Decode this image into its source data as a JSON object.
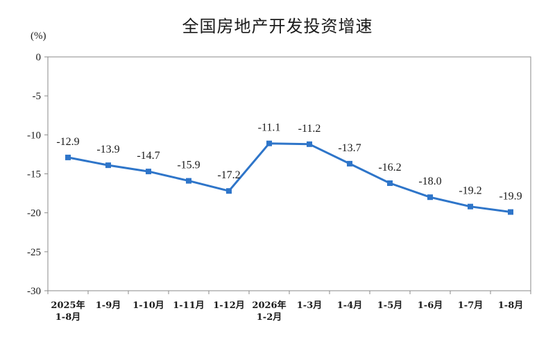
{
  "chart_data": {
    "type": "line",
    "title": "全国房地产开发投资增速",
    "ylabel": "(%)",
    "xlabel": "",
    "ylim": [
      -30,
      0
    ],
    "yticks": [
      0,
      -5,
      -10,
      -15,
      -20,
      -25,
      -30
    ],
    "ytick_labels": [
      "0",
      "-5",
      "-10",
      "-15",
      "-20",
      "-25",
      "-30"
    ],
    "categories": [
      [
        "2025年",
        "1-8月"
      ],
      [
        "1-9月"
      ],
      [
        "1-10月"
      ],
      [
        "1-11月"
      ],
      [
        "1-12月"
      ],
      [
        "2026年",
        "1-2月"
      ],
      [
        "1-3月"
      ],
      [
        "1-4月"
      ],
      [
        "1-5月"
      ],
      [
        "1-6月"
      ],
      [
        "1-7月"
      ],
      [
        "1-8月"
      ]
    ],
    "series": [
      {
        "values": [
          -12.9,
          -13.9,
          -14.7,
          -15.9,
          -17.2,
          -11.1,
          -11.2,
          -13.7,
          -16.2,
          -18.0,
          -19.2,
          -19.9
        ],
        "data_labels": [
          "-12.9",
          "-13.9",
          "-14.7",
          "-15.9",
          "-17.2",
          "-11.1",
          "-11.2",
          "-13.7",
          "-16.2",
          "-18.0",
          "-19.2",
          "-19.9"
        ],
        "color": "#2e75c9"
      }
    ],
    "grid": false,
    "legend": "none"
  }
}
